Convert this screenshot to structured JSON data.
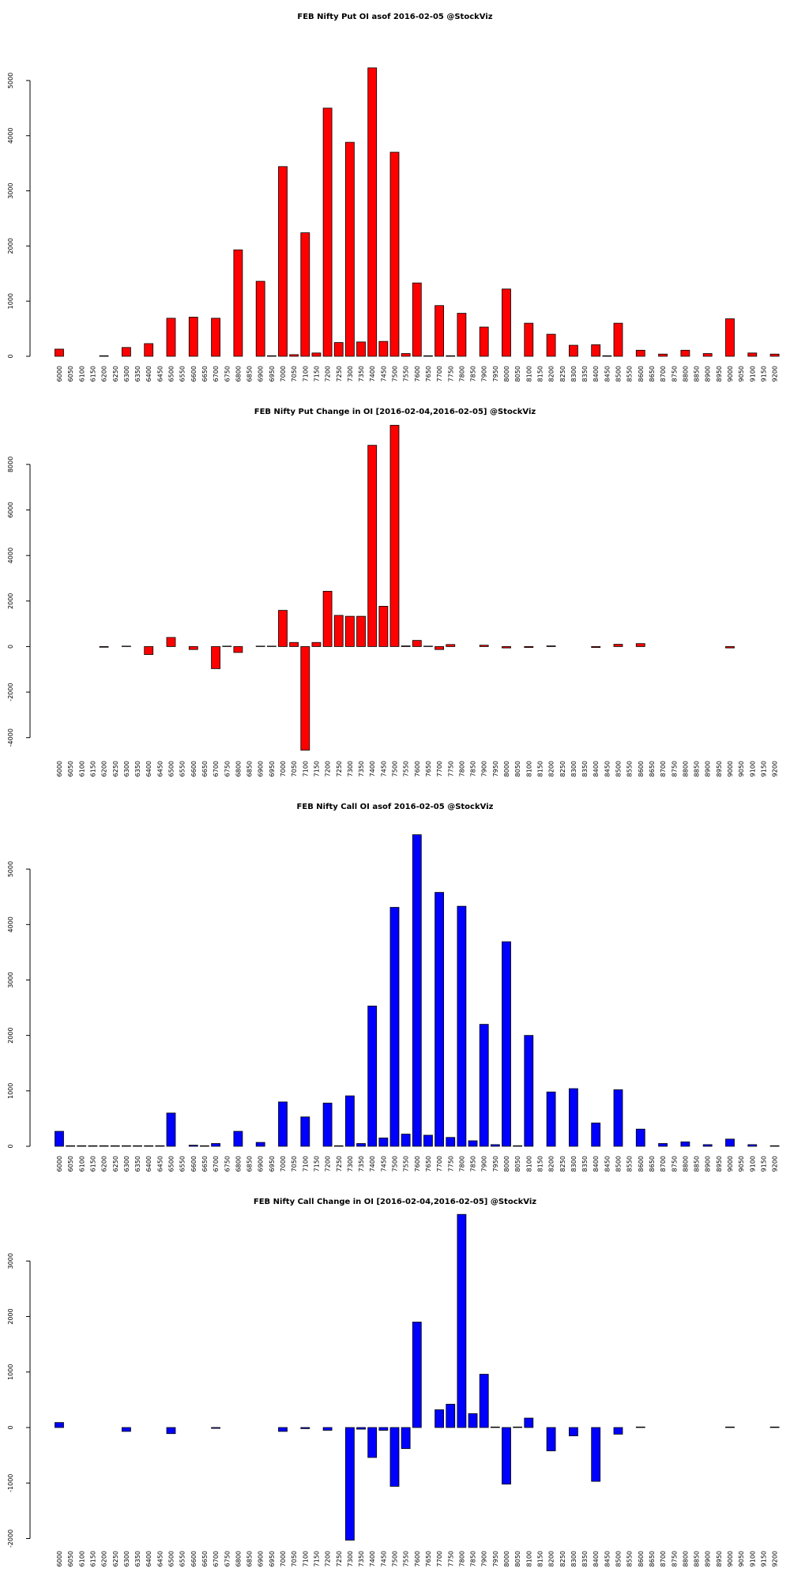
{
  "chart_data": [
    {
      "type": "bar",
      "title": "FEB Nifty Put OI asof 2016-02-05 @StockViz",
      "color": "#ff0000",
      "categories": [
        6000,
        6050,
        6100,
        6150,
        6200,
        6250,
        6300,
        6350,
        6400,
        6450,
        6500,
        6550,
        6600,
        6650,
        6700,
        6750,
        6800,
        6850,
        6900,
        6950,
        7000,
        7050,
        7100,
        7150,
        7200,
        7250,
        7300,
        7350,
        7400,
        7450,
        7500,
        7550,
        7600,
        7650,
        7700,
        7750,
        7800,
        7850,
        7900,
        7950,
        8000,
        8050,
        8100,
        8150,
        8200,
        8250,
        8300,
        8350,
        8400,
        8450,
        8500,
        8550,
        8600,
        8650,
        8700,
        8750,
        8800,
        8850,
        8900,
        8950,
        9000,
        9050,
        9100,
        9150,
        9200
      ],
      "values": [
        130,
        0,
        0,
        0,
        10,
        0,
        160,
        0,
        230,
        0,
        690,
        0,
        710,
        0,
        690,
        0,
        1930,
        0,
        1360,
        10,
        3440,
        30,
        2240,
        60,
        4500,
        250,
        3880,
        260,
        5230,
        270,
        3700,
        50,
        1330,
        10,
        920,
        10,
        780,
        0,
        530,
        0,
        1220,
        0,
        600,
        0,
        400,
        0,
        200,
        0,
        210,
        10,
        600,
        0,
        110,
        0,
        40,
        0,
        110,
        0,
        50,
        0,
        680,
        0,
        60,
        0,
        40
      ],
      "ylim": [
        0,
        5300
      ],
      "yticks": [
        0,
        1000,
        2000,
        3000,
        4000,
        5000
      ]
    },
    {
      "type": "bar",
      "title": "FEB Nifty Put Change in OI [2016-02-04,2016-02-05] @StockViz",
      "color": "#ff0000",
      "categories": [
        6000,
        6050,
        6100,
        6150,
        6200,
        6250,
        6300,
        6350,
        6400,
        6450,
        6500,
        6550,
        6600,
        6650,
        6700,
        6750,
        6800,
        6850,
        6900,
        6950,
        7000,
        7050,
        7100,
        7150,
        7200,
        7250,
        7300,
        7350,
        7400,
        7450,
        7500,
        7550,
        7600,
        7650,
        7700,
        7750,
        7800,
        7850,
        7900,
        7950,
        8000,
        8050,
        8100,
        8150,
        8200,
        8250,
        8300,
        8350,
        8400,
        8450,
        8500,
        8550,
        8600,
        8650,
        8700,
        8750,
        8800,
        8850,
        8900,
        8950,
        9000,
        9050,
        9100,
        9150,
        9200
      ],
      "values": [
        0,
        0,
        0,
        0,
        -30,
        0,
        20,
        0,
        -350,
        0,
        400,
        0,
        -130,
        0,
        -970,
        20,
        -260,
        0,
        20,
        20,
        1590,
        180,
        -4550,
        180,
        2430,
        1370,
        1330,
        1330,
        8840,
        1770,
        9720,
        30,
        270,
        20,
        -130,
        90,
        0,
        0,
        60,
        0,
        -60,
        0,
        -40,
        0,
        30,
        0,
        0,
        0,
        -40,
        0,
        100,
        0,
        130,
        0,
        0,
        0,
        0,
        0,
        0,
        0,
        -60,
        0,
        0,
        0,
        0
      ],
      "ylim": [
        -4600,
        9800
      ],
      "yticks": [
        -4000,
        -2000,
        0,
        2000,
        4000,
        6000,
        8000
      ]
    },
    {
      "type": "bar",
      "title": "FEB Nifty Call OI asof 2016-02-05 @StockViz",
      "color": "#0000ff",
      "categories": [
        6000,
        6050,
        6100,
        6150,
        6200,
        6250,
        6300,
        6350,
        6400,
        6450,
        6500,
        6550,
        6600,
        6650,
        6700,
        6750,
        6800,
        6850,
        6900,
        6950,
        7000,
        7050,
        7100,
        7150,
        7200,
        7250,
        7300,
        7350,
        7400,
        7450,
        7500,
        7550,
        7600,
        7650,
        7700,
        7750,
        7800,
        7850,
        7900,
        7950,
        8000,
        8050,
        8100,
        8150,
        8200,
        8250,
        8300,
        8350,
        8400,
        8450,
        8500,
        8550,
        8600,
        8650,
        8700,
        8750,
        8800,
        8850,
        8900,
        8950,
        9000,
        9050,
        9100,
        9150,
        9200
      ],
      "values": [
        270,
        10,
        10,
        10,
        10,
        10,
        10,
        10,
        10,
        10,
        600,
        0,
        20,
        10,
        50,
        0,
        270,
        0,
        70,
        0,
        800,
        0,
        530,
        0,
        780,
        10,
        910,
        50,
        2530,
        150,
        4310,
        220,
        5620,
        200,
        4580,
        160,
        4330,
        100,
        2200,
        30,
        3690,
        10,
        2000,
        0,
        980,
        0,
        1040,
        0,
        420,
        0,
        1020,
        0,
        310,
        0,
        50,
        0,
        80,
        0,
        30,
        0,
        130,
        0,
        30,
        0,
        10
      ],
      "ylim": [
        0,
        5700
      ],
      "yticks": [
        0,
        1000,
        2000,
        3000,
        4000,
        5000
      ]
    },
    {
      "type": "bar",
      "title": "FEB Nifty Call Change in OI [2016-02-04,2016-02-05] @StockViz",
      "color": "#0000ff",
      "categories": [
        6000,
        6050,
        6100,
        6150,
        6200,
        6250,
        6300,
        6350,
        6400,
        6450,
        6500,
        6550,
        6600,
        6650,
        6700,
        6750,
        6800,
        6850,
        6900,
        6950,
        7000,
        7050,
        7100,
        7150,
        7200,
        7250,
        7300,
        7350,
        7400,
        7450,
        7500,
        7550,
        7600,
        7650,
        7700,
        7750,
        7800,
        7850,
        7900,
        7950,
        8000,
        8050,
        8100,
        8150,
        8200,
        8250,
        8300,
        8350,
        8400,
        8450,
        8500,
        8550,
        8600,
        8650,
        8700,
        8750,
        8800,
        8850,
        8900,
        8950,
        9000,
        9050,
        9100,
        9150,
        9200
      ],
      "values": [
        90,
        0,
        0,
        0,
        0,
        0,
        -70,
        0,
        0,
        0,
        -110,
        0,
        0,
        0,
        -15,
        0,
        0,
        0,
        0,
        0,
        -70,
        0,
        -20,
        0,
        -50,
        0,
        -2030,
        -30,
        -540,
        -50,
        -1060,
        -380,
        1900,
        0,
        320,
        420,
        3840,
        250,
        960,
        10,
        -1020,
        10,
        170,
        0,
        -420,
        0,
        -150,
        0,
        -970,
        0,
        -120,
        0,
        10,
        0,
        0,
        0,
        0,
        0,
        0,
        0,
        10,
        0,
        0,
        0,
        10
      ],
      "ylim": [
        -2050,
        3900
      ],
      "yticks": [
        -2000,
        -1000,
        0,
        1000,
        2000,
        3000
      ]
    }
  ]
}
